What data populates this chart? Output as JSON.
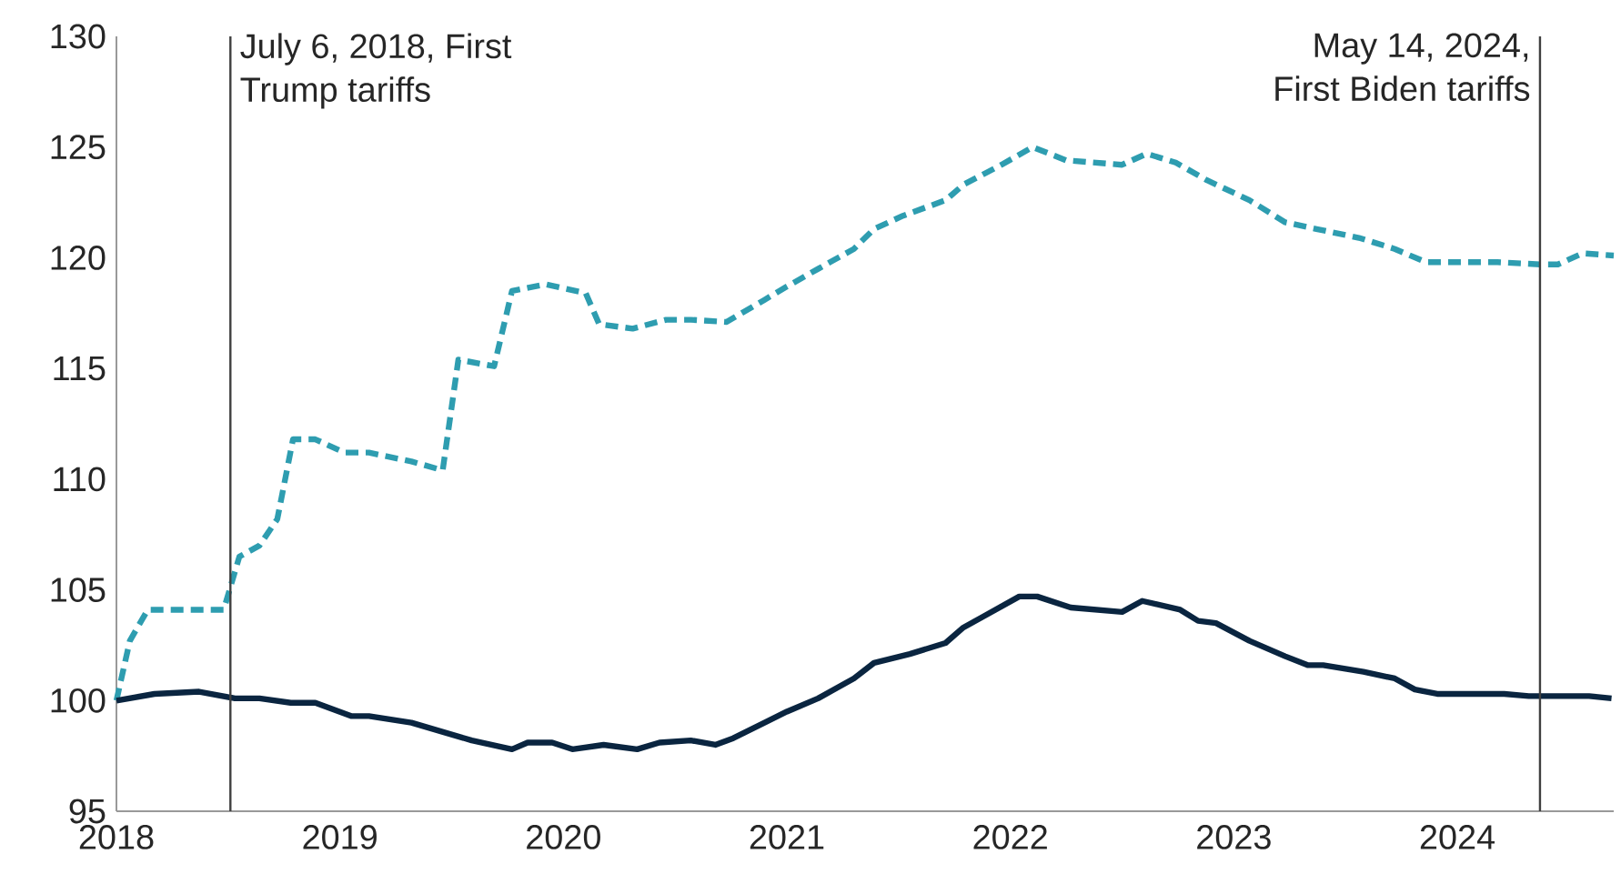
{
  "chart_data": {
    "type": "line",
    "xlim": [
      2018,
      2024.7
    ],
    "xticks": [
      2018,
      2019,
      2020,
      2021,
      2022,
      2023,
      2024
    ],
    "ylim": [
      95,
      130
    ],
    "yticks": [
      95,
      100,
      105,
      110,
      115,
      120,
      125,
      130
    ],
    "ref_lines": [
      {
        "axis": "x",
        "value": 2018.51,
        "label": "July 6, 2018, First Trump tariffs",
        "color": "#404040"
      },
      {
        "axis": "x",
        "value": 2024.37,
        "label": "May 14, 2024, First Biden tariffs",
        "color": "#404040"
      }
    ],
    "series": [
      {
        "color": "#2e9db0",
        "line_style": "dashed",
        "x": [
          2018.0,
          2018.06,
          2018.14,
          2018.29,
          2018.48,
          2018.55,
          2018.64,
          2018.72,
          2018.79,
          2018.89,
          2019.02,
          2019.13,
          2019.32,
          2019.46,
          2019.53,
          2019.69,
          2019.77,
          2019.92,
          2020.1,
          2020.16,
          2020.31,
          2020.46,
          2020.57,
          2020.73,
          2020.9,
          2021.0,
          2021.14,
          2021.3,
          2021.39,
          2021.52,
          2021.71,
          2021.79,
          2021.96,
          2022.1,
          2022.25,
          2022.5,
          2022.61,
          2022.74,
          2022.88,
          2023.07,
          2023.23,
          2023.37,
          2023.56,
          2023.72,
          2023.86,
          2024.18,
          2024.37,
          2024.45,
          2024.56,
          2024.7
        ],
        "values": [
          100,
          102.7,
          104.1,
          104.1,
          104.1,
          106.5,
          107.0,
          108.2,
          111.8,
          111.8,
          111.2,
          111.2,
          110.8,
          110.4,
          115.4,
          115.1,
          118.5,
          118.8,
          118.4,
          117.0,
          116.8,
          117.2,
          117.2,
          117.1,
          118.1,
          118.7,
          119.5,
          120.4,
          121.3,
          121.9,
          122.6,
          123.3,
          124.2,
          125.0,
          124.4,
          124.2,
          124.7,
          124.3,
          123.5,
          122.6,
          121.6,
          121.3,
          120.9,
          120.4,
          119.8,
          119.8,
          119.7,
          119.7,
          120.2,
          120.1
        ]
      },
      {
        "color": "#0a2540",
        "line_style": "solid",
        "x": [
          2018.0,
          2018.17,
          2018.37,
          2018.53,
          2018.64,
          2018.78,
          2018.89,
          2019.05,
          2019.13,
          2019.32,
          2019.59,
          2019.77,
          2019.84,
          2019.95,
          2020.04,
          2020.18,
          2020.33,
          2020.43,
          2020.57,
          2020.68,
          2020.76,
          2020.9,
          2021.0,
          2021.14,
          2021.3,
          2021.39,
          2021.55,
          2021.71,
          2021.79,
          2021.88,
          2022.04,
          2022.12,
          2022.27,
          2022.5,
          2022.59,
          2022.76,
          2022.84,
          2022.92,
          2023.07,
          2023.23,
          2023.33,
          2023.4,
          2023.58,
          2023.72,
          2023.81,
          2023.91,
          2024.21,
          2024.32,
          2024.59,
          2024.69
        ],
        "values": [
          100,
          100.3,
          100.4,
          100.1,
          100.1,
          99.9,
          99.9,
          99.3,
          99.3,
          99.0,
          98.2,
          97.8,
          98.1,
          98.1,
          97.8,
          98.0,
          97.8,
          98.1,
          98.2,
          98.0,
          98.3,
          99.0,
          99.5,
          100.1,
          101.0,
          101.7,
          102.1,
          102.6,
          103.3,
          103.8,
          104.7,
          104.7,
          104.2,
          104.0,
          104.5,
          104.1,
          103.6,
          103.5,
          102.7,
          102.0,
          101.6,
          101.6,
          101.3,
          101.0,
          100.5,
          100.3,
          100.3,
          100.2,
          100.2,
          100.1
        ]
      }
    ]
  }
}
